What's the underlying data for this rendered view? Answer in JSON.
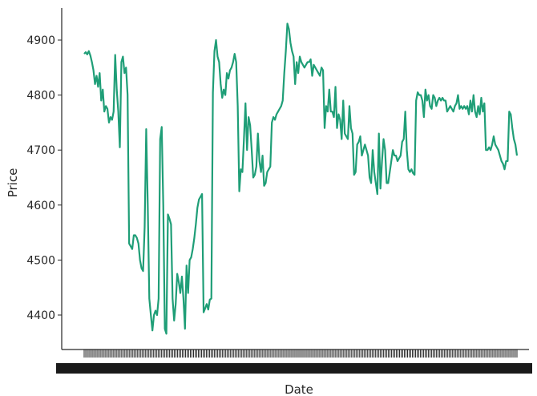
{
  "chart_data": {
    "type": "line",
    "title": "",
    "xlabel": "Date",
    "ylabel": "Price",
    "ylim": [
      4340,
      4960
    ],
    "yticks": [
      4400,
      4500,
      4600,
      4700,
      4800,
      4900
    ],
    "ytick_labels": [
      "4400",
      "4500",
      "4600",
      "4700",
      "4800",
      "4900"
    ],
    "x_tick_count": 270,
    "grid": false,
    "legend": "none",
    "series": [
      {
        "color": "#1f9e77",
        "values": [
          4875,
          4878,
          4874,
          4880,
          4872,
          4860,
          4845,
          4820,
          4835,
          4815,
          4840,
          4790,
          4810,
          4770,
          4780,
          4775,
          4750,
          4760,
          4755,
          4770,
          4873,
          4810,
          4770,
          4705,
          4860,
          4870,
          4840,
          4850,
          4800,
          4530,
          4525,
          4520,
          4545,
          4545,
          4540,
          4530,
          4500,
          4485,
          4480,
          4560,
          4738,
          4600,
          4430,
          4400,
          4372,
          4400,
          4408,
          4400,
          4430,
          4720,
          4742,
          4600,
          4375,
          4366,
          4583,
          4575,
          4565,
          4430,
          4390,
          4420,
          4475,
          4460,
          4440,
          4470,
          4430,
          4375,
          4490,
          4440,
          4500,
          4505,
          4520,
          4540,
          4565,
          4595,
          4610,
          4615,
          4620,
          4405,
          4412,
          4420,
          4410,
          4428,
          4430,
          4805,
          4880,
          4900,
          4870,
          4860,
          4820,
          4795,
          4810,
          4800,
          4840,
          4830,
          4845,
          4850,
          4860,
          4875,
          4860,
          4780,
          4625,
          4665,
          4660,
          4720,
          4785,
          4700,
          4760,
          4745,
          4700,
          4650,
          4655,
          4670,
          4730,
          4680,
          4660,
          4690,
          4635,
          4640,
          4660,
          4665,
          4670,
          4750,
          4760,
          4755,
          4765,
          4770,
          4775,
          4780,
          4790,
          4840,
          4880,
          4930,
          4920,
          4895,
          4880,
          4870,
          4820,
          4860,
          4840,
          4870,
          4860,
          4855,
          4850,
          4855,
          4860,
          4860,
          4865,
          4835,
          4855,
          4850,
          4845,
          4840,
          4835,
          4850,
          4845,
          4740,
          4780,
          4770,
          4810,
          4770,
          4770,
          4760,
          4815,
          4740,
          4765,
          4755,
          4720,
          4790,
          4730,
          4725,
          4720,
          4780,
          4740,
          4730,
          4655,
          4660,
          4710,
          4715,
          4725,
          4690,
          4700,
          4710,
          4700,
          4690,
          4650,
          4640,
          4700,
          4660,
          4640,
          4620,
          4730,
          4630,
          4680,
          4720,
          4700,
          4640,
          4640,
          4660,
          4680,
          4700,
          4690,
          4690,
          4680,
          4685,
          4690,
          4715,
          4720,
          4770,
          4700,
          4665,
          4660,
          4665,
          4658,
          4655,
          4790,
          4805,
          4800,
          4800,
          4790,
          4760,
          4810,
          4790,
          4800,
          4780,
          4775,
          4800,
          4795,
          4780,
          4790,
          4795,
          4790,
          4795,
          4790,
          4790,
          4770,
          4775,
          4780,
          4775,
          4770,
          4780,
          4785,
          4800,
          4775,
          4780,
          4775,
          4780,
          4775,
          4780,
          4765,
          4790,
          4770,
          4800,
          4770,
          4760,
          4780,
          4765,
          4795,
          4770,
          4785,
          4700,
          4700,
          4705,
          4700,
          4710,
          4725,
          4710,
          4705,
          4700,
          4690,
          4680,
          4675,
          4665,
          4680,
          4680,
          4770,
          4765,
          4740,
          4720,
          4710,
          4690
        ]
      }
    ]
  }
}
